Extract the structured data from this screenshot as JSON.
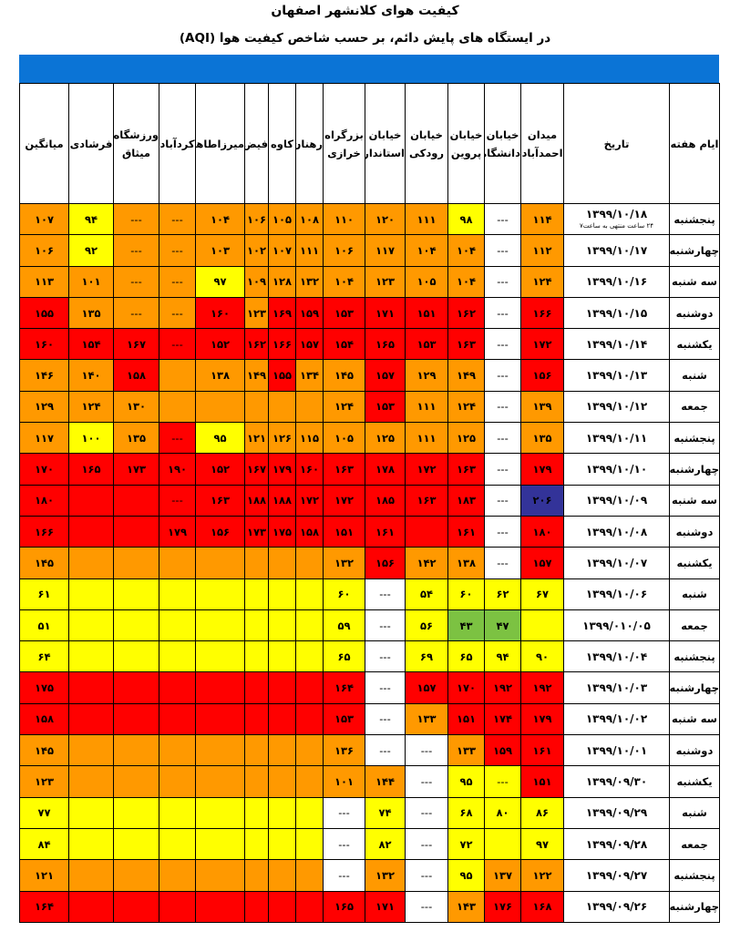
{
  "title": "کیفیت هوای کلانشهر اصفهان",
  "subtitle": "در ایستگاه های پایش دائم، بر حسب شاخص کیفیت هوا (AQI)",
  "headers": [
    "ایام هفته",
    "تاریخ",
    "میدان احمدآباد",
    "خیابان دانشگاه",
    "خیابان پروین",
    "خیابان رودکی",
    "خیابان استانداری",
    "بزرگراه خرازی",
    "رهنان",
    "کاوه",
    "فیض",
    "میرزاطاهر",
    "کردآباد",
    "ورزشگاه میثاق",
    "فرشادی",
    "میانگین"
  ],
  "colors": {
    "g": "#7cc242",
    "y": "#ffff00",
    "o": "#ff9900",
    "r": "#ff0000",
    "p": "#333399",
    "w": "#ffffff"
  },
  "rows": [
    {
      "day": "پنجشنبه",
      "date": "۱۳۹۹/۱۰/۱۸",
      "note": "۲۴ ساعت منتهی به ساعت۷",
      "cells": [
        [
          "۱۱۴",
          "o"
        ],
        [
          "---",
          "w"
        ],
        [
          "۹۸",
          "y"
        ],
        [
          "۱۱۱",
          "o"
        ],
        [
          "۱۲۰",
          "o"
        ],
        [
          "۱۱۰",
          "o"
        ],
        [
          "۱۰۸",
          "o"
        ],
        [
          "۱۰۵",
          "o"
        ],
        [
          "۱۰۶",
          "o"
        ],
        [
          "۱۰۴",
          "o"
        ],
        [
          "---",
          "o"
        ],
        [
          "---",
          "o"
        ],
        [
          "۹۴",
          "y"
        ],
        [
          "۱۰۷",
          "o"
        ]
      ]
    },
    {
      "day": "چهارشنبه",
      "date": "۱۳۹۹/۱۰/۱۷",
      "cells": [
        [
          "۱۱۲",
          "o"
        ],
        [
          "---",
          "w"
        ],
        [
          "۱۰۴",
          "o"
        ],
        [
          "۱۰۴",
          "o"
        ],
        [
          "۱۱۷",
          "o"
        ],
        [
          "۱۰۶",
          "o"
        ],
        [
          "۱۱۱",
          "o"
        ],
        [
          "۱۰۷",
          "o"
        ],
        [
          "۱۰۲",
          "o"
        ],
        [
          "۱۰۳",
          "o"
        ],
        [
          "---",
          "o"
        ],
        [
          "---",
          "o"
        ],
        [
          "۹۲",
          "y"
        ],
        [
          "۱۰۶",
          "o"
        ]
      ]
    },
    {
      "day": "سه شنبه",
      "date": "۱۳۹۹/۱۰/۱۶",
      "cells": [
        [
          "۱۲۴",
          "o"
        ],
        [
          "---",
          "w"
        ],
        [
          "۱۰۴",
          "o"
        ],
        [
          "۱۰۵",
          "o"
        ],
        [
          "۱۲۳",
          "o"
        ],
        [
          "۱۰۴",
          "o"
        ],
        [
          "۱۳۲",
          "o"
        ],
        [
          "۱۲۸",
          "o"
        ],
        [
          "۱۰۹",
          "o"
        ],
        [
          "۹۷",
          "y"
        ],
        [
          "---",
          "o"
        ],
        [
          "---",
          "o"
        ],
        [
          "۱۰۱",
          "o"
        ],
        [
          "۱۱۳",
          "o"
        ]
      ]
    },
    {
      "day": "دوشنبه",
      "date": "۱۳۹۹/۱۰/۱۵",
      "cells": [
        [
          "۱۶۶",
          "r"
        ],
        [
          "---",
          "w"
        ],
        [
          "۱۶۲",
          "r"
        ],
        [
          "۱۵۱",
          "r"
        ],
        [
          "۱۷۱",
          "r"
        ],
        [
          "۱۵۳",
          "r"
        ],
        [
          "۱۵۹",
          "r"
        ],
        [
          "۱۶۹",
          "r"
        ],
        [
          "۱۲۳",
          "o"
        ],
        [
          "۱۶۰",
          "r"
        ],
        [
          "---",
          "o"
        ],
        [
          "---",
          "o"
        ],
        [
          "۱۳۵",
          "o"
        ],
        [
          "۱۵۵",
          "r"
        ]
      ]
    },
    {
      "day": "یکشنبه",
      "date": "۱۳۹۹/۱۰/۱۴",
      "cells": [
        [
          "۱۷۲",
          "r"
        ],
        [
          "---",
          "w"
        ],
        [
          "۱۶۳",
          "r"
        ],
        [
          "۱۵۳",
          "r"
        ],
        [
          "۱۶۵",
          "r"
        ],
        [
          "۱۵۴",
          "r"
        ],
        [
          "۱۵۷",
          "r"
        ],
        [
          "۱۶۶",
          "r"
        ],
        [
          "۱۶۲",
          "r"
        ],
        [
          "۱۵۲",
          "r"
        ],
        [
          "---",
          "r"
        ],
        [
          "۱۶۷",
          "r"
        ],
        [
          "۱۵۴",
          "r"
        ],
        [
          "۱۶۰",
          "r"
        ]
      ]
    },
    {
      "day": "شنبه",
      "date": "۱۳۹۹/۱۰/۱۳",
      "cells": [
        [
          "۱۵۶",
          "r"
        ],
        [
          "---",
          "w"
        ],
        [
          "۱۴۹",
          "o"
        ],
        [
          "۱۲۹",
          "o"
        ],
        [
          "۱۵۷",
          "r"
        ],
        [
          "۱۴۵",
          "o"
        ],
        [
          "۱۳۴",
          "o"
        ],
        [
          "۱۵۵",
          "r"
        ],
        [
          "۱۴۹",
          "o"
        ],
        [
          "۱۳۸",
          "o"
        ],
        [
          "",
          "o"
        ],
        [
          "۱۵۸",
          "r"
        ],
        [
          "۱۴۰",
          "o"
        ],
        [
          "۱۴۶",
          "o"
        ]
      ]
    },
    {
      "day": "جمعه",
      "date": "۱۳۹۹/۱۰/۱۲",
      "cells": [
        [
          "۱۳۹",
          "o"
        ],
        [
          "---",
          "w"
        ],
        [
          "۱۲۴",
          "o"
        ],
        [
          "۱۱۱",
          "o"
        ],
        [
          "۱۵۳",
          "r"
        ],
        [
          "۱۲۴",
          "o"
        ],
        [
          "",
          "o"
        ],
        [
          "",
          "o"
        ],
        [
          "",
          "o"
        ],
        [
          "",
          "o"
        ],
        [
          "",
          "o"
        ],
        [
          "۱۳۰",
          "o"
        ],
        [
          "۱۲۴",
          "o"
        ],
        [
          "۱۲۹",
          "o"
        ]
      ]
    },
    {
      "day": "پنجشنبه",
      "date": "۱۳۹۹/۱۰/۱۱",
      "cells": [
        [
          "۱۳۵",
          "o"
        ],
        [
          "---",
          "w"
        ],
        [
          "۱۲۵",
          "o"
        ],
        [
          "۱۱۱",
          "o"
        ],
        [
          "۱۲۵",
          "o"
        ],
        [
          "۱۰۵",
          "o"
        ],
        [
          "۱۱۵",
          "o"
        ],
        [
          "۱۲۶",
          "o"
        ],
        [
          "۱۲۱",
          "o"
        ],
        [
          "۹۵",
          "y"
        ],
        [
          "---",
          "r"
        ],
        [
          "۱۳۵",
          "o"
        ],
        [
          "۱۰۰",
          "y"
        ],
        [
          "۱۱۷",
          "o"
        ]
      ]
    },
    {
      "day": "چهارشنبه",
      "date": "۱۳۹۹/۱۰/۱۰",
      "cells": [
        [
          "۱۷۹",
          "r"
        ],
        [
          "---",
          "w"
        ],
        [
          "۱۶۳",
          "r"
        ],
        [
          "۱۷۲",
          "r"
        ],
        [
          "۱۷۸",
          "r"
        ],
        [
          "۱۶۳",
          "r"
        ],
        [
          "۱۶۰",
          "r"
        ],
        [
          "۱۷۹",
          "r"
        ],
        [
          "۱۶۷",
          "r"
        ],
        [
          "۱۵۲",
          "r"
        ],
        [
          "۱۹۰",
          "r"
        ],
        [
          "۱۷۳",
          "r"
        ],
        [
          "۱۶۵",
          "r"
        ],
        [
          "۱۷۰",
          "r"
        ]
      ]
    },
    {
      "day": "سه شنبه",
      "date": "۱۳۹۹/۱۰/۰۹",
      "cells": [
        [
          "۲۰۶",
          "p"
        ],
        [
          "---",
          "w"
        ],
        [
          "۱۸۳",
          "r"
        ],
        [
          "۱۶۳",
          "r"
        ],
        [
          "۱۸۵",
          "r"
        ],
        [
          "۱۷۲",
          "r"
        ],
        [
          "۱۷۲",
          "r"
        ],
        [
          "۱۸۸",
          "r"
        ],
        [
          "۱۸۸",
          "r"
        ],
        [
          "۱۶۳",
          "r"
        ],
        [
          "---",
          "r"
        ],
        [
          "",
          "r"
        ],
        [
          "",
          "r"
        ],
        [
          "۱۸۰",
          "r"
        ]
      ]
    },
    {
      "day": "دوشنبه",
      "date": "۱۳۹۹/۱۰/۰۸",
      "cells": [
        [
          "۱۸۰",
          "r"
        ],
        [
          "---",
          "w"
        ],
        [
          "۱۶۱",
          "r"
        ],
        [
          "",
          "r"
        ],
        [
          "۱۶۱",
          "r"
        ],
        [
          "۱۵۱",
          "r"
        ],
        [
          "۱۵۸",
          "r"
        ],
        [
          "۱۷۵",
          "r"
        ],
        [
          "۱۷۳",
          "r"
        ],
        [
          "۱۵۶",
          "r"
        ],
        [
          "۱۷۹",
          "r"
        ],
        [
          "",
          "r"
        ],
        [
          "",
          "r"
        ],
        [
          "۱۶۶",
          "r"
        ]
      ]
    },
    {
      "day": "یکشنبه",
      "date": "۱۳۹۹/۱۰/۰۷",
      "cells": [
        [
          "۱۵۷",
          "r"
        ],
        [
          "---",
          "w"
        ],
        [
          "۱۳۸",
          "o"
        ],
        [
          "۱۴۲",
          "o"
        ],
        [
          "۱۵۶",
          "r"
        ],
        [
          "۱۳۲",
          "o"
        ],
        [
          "",
          "o"
        ],
        [
          "",
          "o"
        ],
        [
          "",
          "o"
        ],
        [
          "",
          "o"
        ],
        [
          "",
          "o"
        ],
        [
          "",
          "o"
        ],
        [
          "",
          "o"
        ],
        [
          "۱۴۵",
          "o"
        ]
      ]
    },
    {
      "day": "شنبه",
      "date": "۱۳۹۹/۱۰/۰۶",
      "cells": [
        [
          "۶۷",
          "y"
        ],
        [
          "۶۲",
          "y"
        ],
        [
          "۶۰",
          "y"
        ],
        [
          "۵۴",
          "y"
        ],
        [
          "---",
          "w"
        ],
        [
          "۶۰",
          "y"
        ],
        [
          "",
          "y"
        ],
        [
          "",
          "y"
        ],
        [
          "",
          "y"
        ],
        [
          "",
          "y"
        ],
        [
          "",
          "y"
        ],
        [
          "",
          "y"
        ],
        [
          "",
          "y"
        ],
        [
          "۶۱",
          "y"
        ]
      ]
    },
    {
      "day": "جمعه",
      "date": "۱۳۹۹/۰۱۰/۰۵",
      "cells": [
        [
          "",
          "y"
        ],
        [
          "۴۷",
          "g"
        ],
        [
          "۴۳",
          "g"
        ],
        [
          "۵۶",
          "y"
        ],
        [
          "---",
          "w"
        ],
        [
          "۵۹",
          "y"
        ],
        [
          "",
          "y"
        ],
        [
          "",
          "y"
        ],
        [
          "",
          "y"
        ],
        [
          "",
          "y"
        ],
        [
          "",
          "y"
        ],
        [
          "",
          "y"
        ],
        [
          "",
          "y"
        ],
        [
          "۵۱",
          "y"
        ]
      ]
    },
    {
      "day": "پنجشنبه",
      "date": "۱۳۹۹/۱۰/۰۴",
      "cells": [
        [
          "۹۰",
          "y"
        ],
        [
          "۹۴",
          "y"
        ],
        [
          "۶۵",
          "y"
        ],
        [
          "۶۹",
          "y"
        ],
        [
          "---",
          "w"
        ],
        [
          "۶۵",
          "y"
        ],
        [
          "",
          "y"
        ],
        [
          "",
          "y"
        ],
        [
          "",
          "y"
        ],
        [
          "",
          "y"
        ],
        [
          "",
          "y"
        ],
        [
          "",
          "y"
        ],
        [
          "",
          "y"
        ],
        [
          "۶۴",
          "y"
        ]
      ]
    },
    {
      "day": "چهارشنبه",
      "date": "۱۳۹۹/۱۰/۰۳",
      "cells": [
        [
          "۱۹۲",
          "r"
        ],
        [
          "۱۹۲",
          "r"
        ],
        [
          "۱۷۰",
          "r"
        ],
        [
          "۱۵۷",
          "r"
        ],
        [
          "---",
          "w"
        ],
        [
          "۱۶۴",
          "r"
        ],
        [
          "",
          "r"
        ],
        [
          "",
          "r"
        ],
        [
          "",
          "r"
        ],
        [
          "",
          "r"
        ],
        [
          "",
          "r"
        ],
        [
          "",
          "r"
        ],
        [
          "",
          "r"
        ],
        [
          "۱۷۵",
          "r"
        ]
      ]
    },
    {
      "day": "سه شنبه",
      "date": "۱۳۹۹/۱۰/۰۲",
      "cells": [
        [
          "۱۷۹",
          "r"
        ],
        [
          "۱۷۴",
          "r"
        ],
        [
          "۱۵۱",
          "r"
        ],
        [
          "۱۳۳",
          "o"
        ],
        [
          "---",
          "w"
        ],
        [
          "۱۵۳",
          "r"
        ],
        [
          "",
          "r"
        ],
        [
          "",
          "r"
        ],
        [
          "",
          "r"
        ],
        [
          "",
          "r"
        ],
        [
          "",
          "r"
        ],
        [
          "",
          "r"
        ],
        [
          "",
          "r"
        ],
        [
          "۱۵۸",
          "r"
        ]
      ]
    },
    {
      "day": "دوشنبه",
      "date": "۱۳۹۹/۱۰/۰۱",
      "cells": [
        [
          "۱۶۱",
          "r"
        ],
        [
          "۱۵۹",
          "r"
        ],
        [
          "۱۳۳",
          "o"
        ],
        [
          "---",
          "w"
        ],
        [
          "---",
          "w"
        ],
        [
          "۱۳۶",
          "o"
        ],
        [
          "",
          "o"
        ],
        [
          "",
          "o"
        ],
        [
          "",
          "o"
        ],
        [
          "",
          "o"
        ],
        [
          "",
          "o"
        ],
        [
          "",
          "o"
        ],
        [
          "",
          "o"
        ],
        [
          "۱۴۵",
          "o"
        ]
      ]
    },
    {
      "day": "یکشنبه",
      "date": "۱۳۹۹/۰۹/۳۰",
      "cells": [
        [
          "۱۵۱",
          "r"
        ],
        [
          "---",
          "y"
        ],
        [
          "۹۵",
          "y"
        ],
        [
          "---",
          "w"
        ],
        [
          "۱۴۴",
          "o"
        ],
        [
          "۱۰۱",
          "o"
        ],
        [
          "",
          "o"
        ],
        [
          "",
          "o"
        ],
        [
          "",
          "o"
        ],
        [
          "",
          "o"
        ],
        [
          "",
          "o"
        ],
        [
          "",
          "o"
        ],
        [
          "",
          "o"
        ],
        [
          "۱۲۳",
          "o"
        ]
      ]
    },
    {
      "day": "شنبه",
      "date": "۱۳۹۹/۰۹/۲۹",
      "cells": [
        [
          "۸۶",
          "y"
        ],
        [
          "۸۰",
          "y"
        ],
        [
          "۶۸",
          "y"
        ],
        [
          "---",
          "w"
        ],
        [
          "۷۴",
          "y"
        ],
        [
          "---",
          "w"
        ],
        [
          "",
          "y"
        ],
        [
          "",
          "y"
        ],
        [
          "",
          "y"
        ],
        [
          "",
          "y"
        ],
        [
          "",
          "y"
        ],
        [
          "",
          "y"
        ],
        [
          "",
          "y"
        ],
        [
          "۷۷",
          "y"
        ]
      ]
    },
    {
      "day": "جمعه",
      "date": "۱۳۹۹/۰۹/۲۸",
      "cells": [
        [
          "۹۷",
          "y"
        ],
        [
          "",
          "y"
        ],
        [
          "۷۲",
          "y"
        ],
        [
          "---",
          "w"
        ],
        [
          "۸۲",
          "y"
        ],
        [
          "---",
          "w"
        ],
        [
          "",
          "y"
        ],
        [
          "",
          "y"
        ],
        [
          "",
          "y"
        ],
        [
          "",
          "y"
        ],
        [
          "",
          "y"
        ],
        [
          "",
          "y"
        ],
        [
          "",
          "y"
        ],
        [
          "۸۴",
          "y"
        ]
      ]
    },
    {
      "day": "پنجشنبه",
      "date": "۱۳۹۹/۰۹/۲۷",
      "cells": [
        [
          "۱۲۲",
          "o"
        ],
        [
          "۱۳۷",
          "o"
        ],
        [
          "۹۵",
          "y"
        ],
        [
          "---",
          "w"
        ],
        [
          "۱۳۲",
          "o"
        ],
        [
          "---",
          "w"
        ],
        [
          "",
          "o"
        ],
        [
          "",
          "o"
        ],
        [
          "",
          "o"
        ],
        [
          "",
          "o"
        ],
        [
          "",
          "o"
        ],
        [
          "",
          "o"
        ],
        [
          "",
          "o"
        ],
        [
          "۱۲۱",
          "o"
        ]
      ]
    },
    {
      "day": "چهارشنبه",
      "date": "۱۳۹۹/۰۹/۲۶",
      "cells": [
        [
          "۱۶۸",
          "r"
        ],
        [
          "۱۷۶",
          "r"
        ],
        [
          "۱۴۳",
          "o"
        ],
        [
          "---",
          "w"
        ],
        [
          "۱۷۱",
          "r"
        ],
        [
          "۱۶۵",
          "r"
        ],
        [
          "",
          "r"
        ],
        [
          "",
          "r"
        ],
        [
          "",
          "r"
        ],
        [
          "",
          "r"
        ],
        [
          "",
          "r"
        ],
        [
          "",
          "r"
        ],
        [
          "",
          "r"
        ],
        [
          "۱۶۴",
          "r"
        ]
      ]
    }
  ]
}
